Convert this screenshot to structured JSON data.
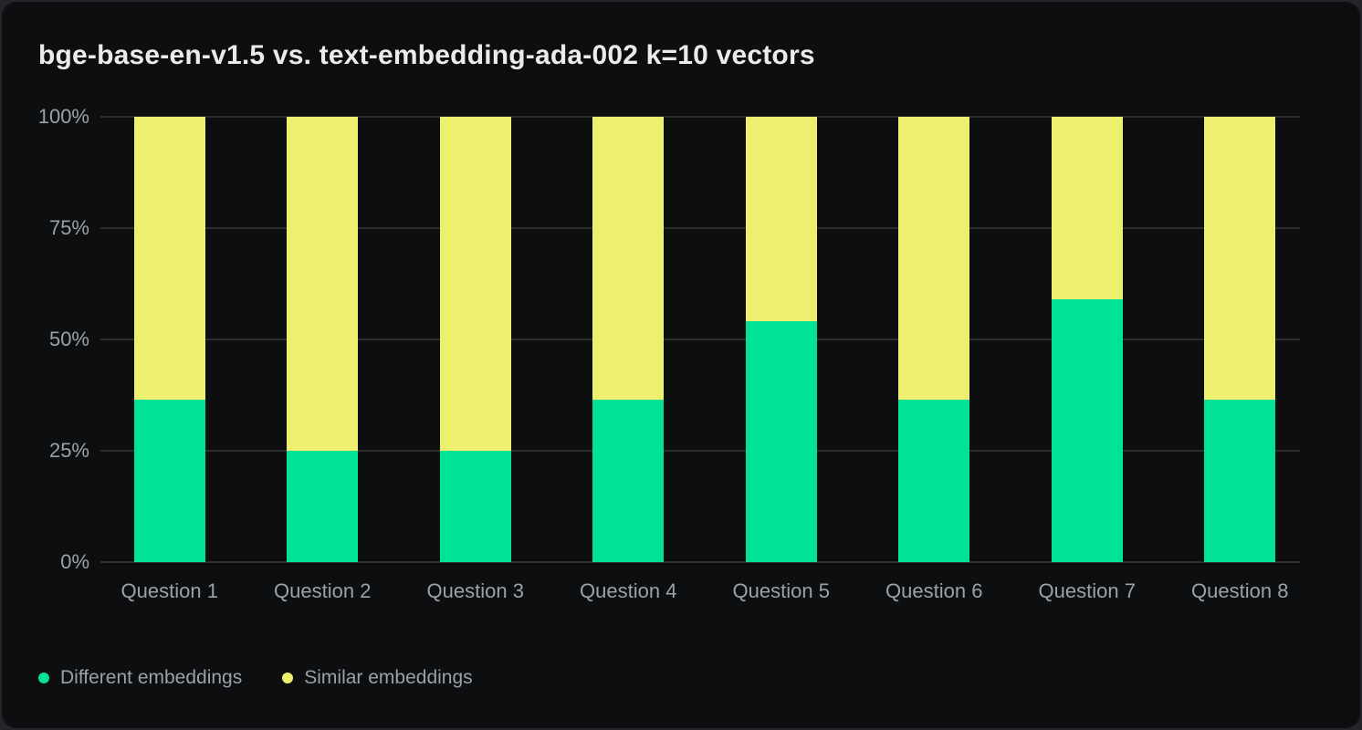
{
  "chart_data": {
    "type": "bar",
    "stacked": true,
    "stack_total": 100,
    "title": "bge-base-en-v1.5 vs. text-embedding-ada-002 k=10 vectors",
    "categories": [
      "Question 1",
      "Question 2",
      "Question 3",
      "Question 4",
      "Question 5",
      "Question 6",
      "Question 7",
      "Question 8"
    ],
    "series": [
      {
        "name": "Different embeddings",
        "color": "#00E396",
        "values": [
          36.5,
          25,
          25,
          36.5,
          54,
          36.5,
          59,
          36.5
        ]
      },
      {
        "name": "Similar embeddings",
        "color": "#EDF06E",
        "values": [
          63.5,
          75,
          75,
          63.5,
          46,
          63.5,
          41,
          63.5
        ]
      }
    ],
    "y_ticks": [
      {
        "label": "0%",
        "value": 0
      },
      {
        "label": "25%",
        "value": 25
      },
      {
        "label": "50%",
        "value": 50
      },
      {
        "label": "75%",
        "value": 75
      },
      {
        "label": "100%",
        "value": 100
      }
    ],
    "ylim": [
      0,
      100
    ],
    "xlabel": "",
    "ylabel": "",
    "grid": "horizontal",
    "legend_position": "bottom-left"
  },
  "colors": {
    "card_background": "#0d0e10",
    "page_background": "#232529",
    "gridline": "#2a2c2e",
    "axis_text": "#9ba1a8",
    "title_text": "#e9ebed"
  }
}
